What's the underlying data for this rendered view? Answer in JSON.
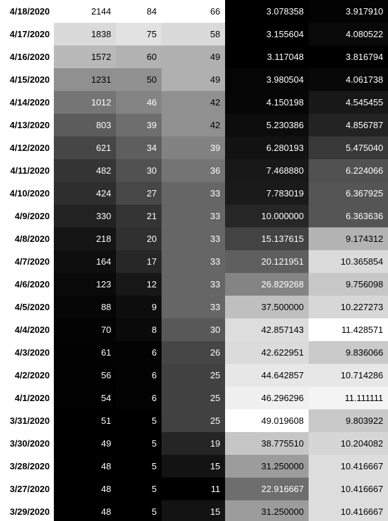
{
  "table": {
    "rows": [
      [
        "4/18/2020",
        "2144",
        "84",
        "66",
        "3.078358",
        "3.917910"
      ],
      [
        "4/17/2020",
        "1838",
        "75",
        "58",
        "3.155604",
        "4.080522"
      ],
      [
        "4/16/2020",
        "1572",
        "60",
        "49",
        "3.117048",
        "3.816794"
      ],
      [
        "4/15/2020",
        "1231",
        "50",
        "49",
        "3.980504",
        "4.061738"
      ],
      [
        "4/14/2020",
        "1012",
        "46",
        "42",
        "4.150198",
        "4.545455"
      ],
      [
        "4/13/2020",
        "803",
        "39",
        "42",
        "5.230386",
        "4.856787"
      ],
      [
        "4/12/2020",
        "621",
        "34",
        "39",
        "6.280193",
        "5.475040"
      ],
      [
        "4/11/2020",
        "482",
        "30",
        "36",
        "7.468880",
        "6.224066"
      ],
      [
        "4/10/2020",
        "424",
        "27",
        "33",
        "7.783019",
        "6.367925"
      ],
      [
        "4/9/2020",
        "330",
        "21",
        "33",
        "10.000000",
        "6.363636"
      ],
      [
        "4/8/2020",
        "218",
        "20",
        "33",
        "15.137615",
        "9.174312"
      ],
      [
        "4/7/2020",
        "164",
        "17",
        "33",
        "20.121951",
        "10.365854"
      ],
      [
        "4/6/2020",
        "123",
        "12",
        "33",
        "26.829268",
        "9.756098"
      ],
      [
        "4/5/2020",
        "88",
        "9",
        "33",
        "37.500000",
        "10.227273"
      ],
      [
        "4/4/2020",
        "70",
        "8",
        "30",
        "42.857143",
        "11.428571"
      ],
      [
        "4/3/2020",
        "61",
        "6",
        "26",
        "42.622951",
        "9.836066"
      ],
      [
        "4/2/2020",
        "56",
        "6",
        "25",
        "44.642857",
        "10.714286"
      ],
      [
        "4/1/2020",
        "54",
        "6",
        "25",
        "46.296296",
        "11.111111"
      ],
      [
        "3/31/2020",
        "51",
        "5",
        "25",
        "49.019608",
        "9.803922"
      ],
      [
        "3/30/2020",
        "49",
        "5",
        "19",
        "38.775510",
        "10.204082"
      ],
      [
        "3/28/2020",
        "48",
        "5",
        "15",
        "31.250000",
        "10.416667"
      ],
      [
        "3/27/2020",
        "48",
        "5",
        "11",
        "22.916667",
        "10.416667"
      ],
      [
        "3/29/2020",
        "48",
        "5",
        "15",
        "31.250000",
        "10.416667"
      ]
    ]
  }
}
